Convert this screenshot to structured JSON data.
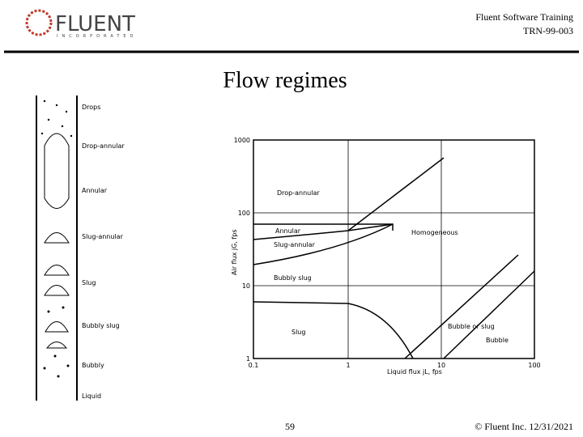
{
  "header": {
    "logo": "FLUENT",
    "logo_sub": "INCORPORATED",
    "course": "Fluent Software Training",
    "code": "TRN-99-003"
  },
  "title": "Flow regimes",
  "pipe_diagram": {
    "labels": [
      "Drops",
      "Drop-annular",
      "Annular",
      "Slug-annular",
      "Slug",
      "Bubbly slug",
      "Bubbly",
      "Liquid"
    ]
  },
  "regime_map": {
    "y_axis_label": "Air flux jG, fps",
    "x_axis_label": "Liquid flux jL, fps",
    "x_tick_labels": [
      "0.1",
      "1",
      "10",
      "100"
    ],
    "y_tick_labels": [
      "1",
      "10",
      "100",
      "1000"
    ],
    "regions": [
      "Drop-annular",
      "Annular",
      "Slug-annular",
      "Homogeneous",
      "Bubbly slug",
      "Slug",
      "Bubble or slug",
      "Bubble"
    ]
  },
  "footer": {
    "page": "59",
    "copyright": "© Fluent Inc. 12/31/2021"
  }
}
